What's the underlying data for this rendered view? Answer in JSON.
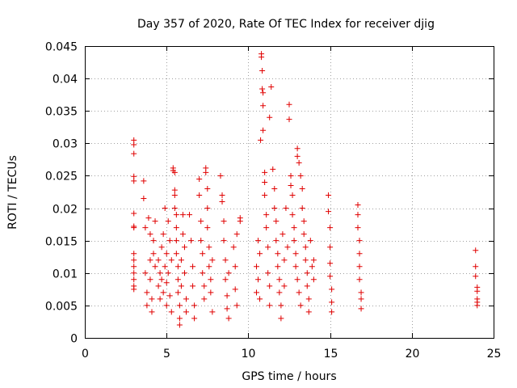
{
  "chart_data": {
    "type": "scatter",
    "title": "Day 357 of 2020, Rate Of TEC Index for receiver djig",
    "xlabel": "GPS time / hours",
    "ylabel": "ROTI / TECUs",
    "xlim": [
      0,
      25
    ],
    "ylim": [
      0,
      0.045
    ],
    "x_ticks": [
      0,
      5,
      10,
      15,
      20,
      25
    ],
    "x_tick_labels": [
      "0",
      "5",
      "10",
      "15",
      "20",
      "25"
    ],
    "y_ticks": [
      0,
      0.005,
      0.01,
      0.015,
      0.02,
      0.025,
      0.03,
      0.035,
      0.04,
      0.045
    ],
    "y_tick_labels": [
      "0",
      "0.005",
      "0.01",
      "0.015",
      "0.02",
      "0.025",
      "0.03",
      "0.035",
      "0.04",
      "0.045"
    ],
    "grid": true,
    "marker": "+",
    "color": "#e00000",
    "series": [
      {
        "name": "ROTI",
        "points": [
          [
            3.0,
            0.0305
          ],
          [
            3.0,
            0.0298
          ],
          [
            3.0,
            0.0284
          ],
          [
            3.0,
            0.0249
          ],
          [
            3.0,
            0.0242
          ],
          [
            3.0,
            0.0192
          ],
          [
            3.0,
            0.0172
          ],
          [
            3.0,
            0.017
          ],
          [
            3.0,
            0.013
          ],
          [
            3.0,
            0.012
          ],
          [
            3.0,
            0.011
          ],
          [
            3.0,
            0.01
          ],
          [
            3.0,
            0.009
          ],
          [
            3.0,
            0.008
          ],
          [
            3.0,
            0.0075
          ],
          [
            3.6,
            0.0242
          ],
          [
            3.6,
            0.0215
          ],
          [
            3.7,
            0.017
          ],
          [
            3.7,
            0.01
          ],
          [
            3.8,
            0.007
          ],
          [
            3.8,
            0.005
          ],
          [
            3.9,
            0.0185
          ],
          [
            4.0,
            0.016
          ],
          [
            4.0,
            0.012
          ],
          [
            4.0,
            0.009
          ],
          [
            4.1,
            0.006
          ],
          [
            4.1,
            0.004
          ],
          [
            4.2,
            0.015
          ],
          [
            4.2,
            0.013
          ],
          [
            4.3,
            0.018
          ],
          [
            4.3,
            0.011
          ],
          [
            4.5,
            0.012
          ],
          [
            4.5,
            0.008
          ],
          [
            4.6,
            0.01
          ],
          [
            4.6,
            0.006
          ],
          [
            4.7,
            0.014
          ],
          [
            4.7,
            0.009
          ],
          [
            4.8,
            0.016
          ],
          [
            4.8,
            0.007
          ],
          [
            4.9,
            0.02
          ],
          [
            4.9,
            0.011
          ],
          [
            5.0,
            0.013
          ],
          [
            5.0,
            0.0085
          ],
          [
            5.0,
            0.005
          ],
          [
            5.1,
            0.018
          ],
          [
            5.1,
            0.01
          ],
          [
            5.2,
            0.015
          ],
          [
            5.2,
            0.0065
          ],
          [
            5.3,
            0.012
          ],
          [
            5.3,
            0.004
          ],
          [
            5.4,
            0.0262
          ],
          [
            5.4,
            0.0258
          ],
          [
            5.5,
            0.0255
          ],
          [
            5.5,
            0.0228
          ],
          [
            5.5,
            0.022
          ],
          [
            5.5,
            0.02
          ],
          [
            5.6,
            0.019
          ],
          [
            5.6,
            0.017
          ],
          [
            5.6,
            0.015
          ],
          [
            5.6,
            0.013
          ],
          [
            5.7,
            0.011
          ],
          [
            5.7,
            0.009
          ],
          [
            5.7,
            0.007
          ],
          [
            5.8,
            0.005
          ],
          [
            5.8,
            0.003
          ],
          [
            5.8,
            0.002
          ],
          [
            5.9,
            0.012
          ],
          [
            5.9,
            0.008
          ],
          [
            6.0,
            0.019
          ],
          [
            6.0,
            0.016
          ],
          [
            6.1,
            0.014
          ],
          [
            6.1,
            0.01
          ],
          [
            6.2,
            0.006
          ],
          [
            6.2,
            0.004
          ],
          [
            6.4,
            0.019
          ],
          [
            6.5,
            0.015
          ],
          [
            6.6,
            0.011
          ],
          [
            6.6,
            0.008
          ],
          [
            6.7,
            0.005
          ],
          [
            6.7,
            0.003
          ],
          [
            7.0,
            0.0245
          ],
          [
            7.0,
            0.022
          ],
          [
            7.1,
            0.018
          ],
          [
            7.1,
            0.015
          ],
          [
            7.2,
            0.013
          ],
          [
            7.2,
            0.01
          ],
          [
            7.3,
            0.008
          ],
          [
            7.3,
            0.006
          ],
          [
            7.4,
            0.0262
          ],
          [
            7.4,
            0.0255
          ],
          [
            7.5,
            0.023
          ],
          [
            7.5,
            0.02
          ],
          [
            7.5,
            0.017
          ],
          [
            7.6,
            0.014
          ],
          [
            7.6,
            0.011
          ],
          [
            7.7,
            0.009
          ],
          [
            7.7,
            0.007
          ],
          [
            7.8,
            0.012
          ],
          [
            7.8,
            0.004
          ],
          [
            8.3,
            0.025
          ],
          [
            8.4,
            0.022
          ],
          [
            8.4,
            0.021
          ],
          [
            8.5,
            0.018
          ],
          [
            8.5,
            0.015
          ],
          [
            8.6,
            0.012
          ],
          [
            8.6,
            0.009
          ],
          [
            8.7,
            0.0065
          ],
          [
            8.7,
            0.0045
          ],
          [
            8.8,
            0.01
          ],
          [
            8.8,
            0.003
          ],
          [
            9.1,
            0.014
          ],
          [
            9.2,
            0.011
          ],
          [
            9.2,
            0.0075
          ],
          [
            9.3,
            0.005
          ],
          [
            9.3,
            0.016
          ],
          [
            9.5,
            0.0185
          ],
          [
            9.5,
            0.018
          ],
          [
            10.5,
            0.011
          ],
          [
            10.5,
            0.007
          ],
          [
            10.6,
            0.015
          ],
          [
            10.6,
            0.009
          ],
          [
            10.7,
            0.013
          ],
          [
            10.7,
            0.006
          ],
          [
            10.75,
            0.0305
          ],
          [
            10.8,
            0.0438
          ],
          [
            10.8,
            0.0433
          ],
          [
            10.85,
            0.0412
          ],
          [
            10.85,
            0.0384
          ],
          [
            10.9,
            0.0378
          ],
          [
            10.9,
            0.0358
          ],
          [
            10.9,
            0.032
          ],
          [
            11.0,
            0.0255
          ],
          [
            11.0,
            0.024
          ],
          [
            11.0,
            0.022
          ],
          [
            11.1,
            0.019
          ],
          [
            11.1,
            0.017
          ],
          [
            11.2,
            0.014
          ],
          [
            11.2,
            0.01
          ],
          [
            11.3,
            0.008
          ],
          [
            11.3,
            0.005
          ],
          [
            11.4,
            0.0387
          ],
          [
            11.3,
            0.034
          ],
          [
            11.5,
            0.026
          ],
          [
            11.6,
            0.023
          ],
          [
            11.6,
            0.02
          ],
          [
            11.7,
            0.018
          ],
          [
            11.7,
            0.015
          ],
          [
            11.8,
            0.013
          ],
          [
            11.8,
            0.011
          ],
          [
            11.9,
            0.009
          ],
          [
            11.9,
            0.007
          ],
          [
            12.0,
            0.005
          ],
          [
            12.0,
            0.003
          ],
          [
            12.1,
            0.016
          ],
          [
            12.2,
            0.012
          ],
          [
            12.2,
            0.008
          ],
          [
            12.3,
            0.02
          ],
          [
            12.4,
            0.014
          ],
          [
            12.5,
            0.036
          ],
          [
            12.5,
            0.0337
          ],
          [
            12.6,
            0.025
          ],
          [
            12.6,
            0.0235
          ],
          [
            12.7,
            0.022
          ],
          [
            12.7,
            0.019
          ],
          [
            12.8,
            0.017
          ],
          [
            12.8,
            0.015
          ],
          [
            12.9,
            0.013
          ],
          [
            12.9,
            0.011
          ],
          [
            13.0,
            0.0292
          ],
          [
            13.0,
            0.028
          ],
          [
            13.0,
            0.009
          ],
          [
            13.1,
            0.027
          ],
          [
            13.1,
            0.007
          ],
          [
            13.2,
            0.025
          ],
          [
            13.2,
            0.005
          ],
          [
            13.3,
            0.023
          ],
          [
            13.3,
            0.02
          ],
          [
            13.4,
            0.018
          ],
          [
            13.4,
            0.016
          ],
          [
            13.5,
            0.014
          ],
          [
            13.5,
            0.012
          ],
          [
            13.6,
            0.01
          ],
          [
            13.6,
            0.008
          ],
          [
            13.7,
            0.006
          ],
          [
            13.7,
            0.004
          ],
          [
            13.8,
            0.015
          ],
          [
            13.9,
            0.011
          ],
          [
            14.0,
            0.009
          ],
          [
            14.0,
            0.012
          ],
          [
            14.9,
            0.022
          ],
          [
            14.9,
            0.0195
          ],
          [
            15.0,
            0.017
          ],
          [
            15.0,
            0.014
          ],
          [
            15.0,
            0.0115
          ],
          [
            15.0,
            0.0095
          ],
          [
            15.1,
            0.0075
          ],
          [
            15.1,
            0.0055
          ],
          [
            15.1,
            0.004
          ],
          [
            16.7,
            0.0205
          ],
          [
            16.7,
            0.019
          ],
          [
            16.7,
            0.017
          ],
          [
            16.8,
            0.015
          ],
          [
            16.8,
            0.013
          ],
          [
            16.8,
            0.011
          ],
          [
            16.8,
            0.009
          ],
          [
            16.9,
            0.007
          ],
          [
            16.9,
            0.006
          ],
          [
            16.9,
            0.0045
          ],
          [
            23.9,
            0.0135
          ],
          [
            23.9,
            0.011
          ],
          [
            23.9,
            0.0095
          ],
          [
            24.0,
            0.0078
          ],
          [
            24.0,
            0.0072
          ],
          [
            24.0,
            0.006
          ],
          [
            24.0,
            0.0055
          ],
          [
            24.0,
            0.005
          ]
        ]
      }
    ]
  }
}
